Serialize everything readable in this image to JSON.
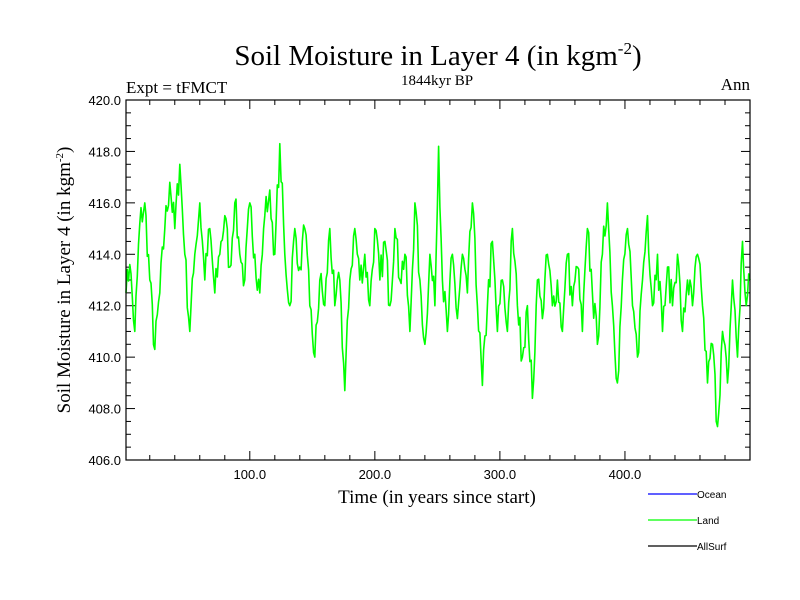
{
  "chart_data": {
    "type": "line",
    "title": "Soil Moisture in Layer 4 (in kgm",
    "title_superscript": "-2",
    "title_close": ")",
    "subtitle": "1844kyr BP",
    "left_label": "Expt = tFMCT",
    "right_label": "Ann",
    "xlabel": "Time (in years since start)",
    "ylabel": "Soil Moisture in Layer 4 (in kgm",
    "ylabel_superscript": "-2",
    "ylabel_close": ")",
    "xlim": [
      1,
      500
    ],
    "ylim": [
      406,
      420
    ],
    "x_major_ticks": [
      100,
      200,
      300,
      400
    ],
    "x_tick_labels": [
      "100.0",
      "200.0",
      "300.0",
      "400.0"
    ],
    "y_major_ticks": [
      406,
      408,
      410,
      412,
      414,
      416,
      418,
      420
    ],
    "y_tick_labels": [
      "406.0",
      "408.0",
      "410.0",
      "412.0",
      "414.0",
      "416.0",
      "418.0",
      "420.0"
    ],
    "legend": [
      {
        "name": "Ocean",
        "color": "#0000ff"
      },
      {
        "name": "Land",
        "color": "#00ff00"
      },
      {
        "name": "AllSurf",
        "color": "#000000"
      }
    ],
    "series": [
      {
        "name": "Land",
        "color": "#00ff00",
        "keypoints": [
          [
            1,
            412.5
          ],
          [
            4,
            413.6
          ],
          [
            8,
            411.0
          ],
          [
            12,
            415.2
          ],
          [
            16,
            416.0
          ],
          [
            20,
            413.0
          ],
          [
            24,
            410.3
          ],
          [
            28,
            412.5
          ],
          [
            32,
            415.0
          ],
          [
            36,
            416.8
          ],
          [
            40,
            415.0
          ],
          [
            44,
            417.5
          ],
          [
            48,
            414.0
          ],
          [
            52,
            411.0
          ],
          [
            56,
            414.0
          ],
          [
            60,
            416.0
          ],
          [
            64,
            413.0
          ],
          [
            68,
            415.0
          ],
          [
            72,
            412.5
          ],
          [
            76,
            414.0
          ],
          [
            80,
            415.5
          ],
          [
            84,
            413.5
          ],
          [
            88,
            416.0
          ],
          [
            92,
            414.0
          ],
          [
            96,
            413.0
          ],
          [
            100,
            416.0
          ],
          [
            104,
            414.0
          ],
          [
            108,
            412.5
          ],
          [
            112,
            415.5
          ],
          [
            116,
            416.5
          ],
          [
            120,
            414.0
          ],
          [
            124,
            418.3
          ],
          [
            128,
            414.0
          ],
          [
            132,
            412.0
          ],
          [
            136,
            415.0
          ],
          [
            140,
            413.5
          ],
          [
            144,
            415.0
          ],
          [
            148,
            412.0
          ],
          [
            152,
            410.0
          ],
          [
            156,
            413.0
          ],
          [
            160,
            412.0
          ],
          [
            164,
            415.0
          ],
          [
            168,
            412.0
          ],
          [
            172,
            413.0
          ],
          [
            176,
            408.7
          ],
          [
            180,
            413.0
          ],
          [
            184,
            415.0
          ],
          [
            188,
            413.0
          ],
          [
            192,
            414.0
          ],
          [
            196,
            412.0
          ],
          [
            200,
            415.0
          ],
          [
            204,
            413.0
          ],
          [
            208,
            414.5
          ],
          [
            212,
            412.0
          ],
          [
            216,
            415.0
          ],
          [
            220,
            413.0
          ],
          [
            224,
            414.0
          ],
          [
            228,
            411.0
          ],
          [
            232,
            416.0
          ],
          [
            236,
            413.0
          ],
          [
            240,
            410.5
          ],
          [
            244,
            414.0
          ],
          [
            248,
            412.0
          ],
          [
            251,
            418.2
          ],
          [
            254,
            413.0
          ],
          [
            258,
            411.0
          ],
          [
            262,
            414.0
          ],
          [
            266,
            411.5
          ],
          [
            270,
            414.0
          ],
          [
            274,
            412.5
          ],
          [
            278,
            416.0
          ],
          [
            282,
            412.0
          ],
          [
            286,
            408.9
          ],
          [
            290,
            412.0
          ],
          [
            294,
            414.5
          ],
          [
            298,
            411.0
          ],
          [
            302,
            413.0
          ],
          [
            306,
            411.0
          ],
          [
            310,
            415.0
          ],
          [
            314,
            412.0
          ],
          [
            318,
            410.0
          ],
          [
            322,
            412.0
          ],
          [
            326,
            408.4
          ],
          [
            330,
            413.0
          ],
          [
            334,
            411.5
          ],
          [
            338,
            414.0
          ],
          [
            342,
            412.0
          ],
          [
            346,
            413.0
          ],
          [
            350,
            411.0
          ],
          [
            354,
            414.0
          ],
          [
            358,
            412.0
          ],
          [
            362,
            413.5
          ],
          [
            366,
            411.0
          ],
          [
            370,
            415.0
          ],
          [
            374,
            412.5
          ],
          [
            378,
            410.5
          ],
          [
            382,
            414.0
          ],
          [
            386,
            416.0
          ],
          [
            390,
            412.0
          ],
          [
            394,
            409.0
          ],
          [
            398,
            413.0
          ],
          [
            402,
            415.0
          ],
          [
            406,
            412.0
          ],
          [
            410,
            410.0
          ],
          [
            414,
            413.0
          ],
          [
            418,
            415.5
          ],
          [
            422,
            412.0
          ],
          [
            426,
            414.0
          ],
          [
            430,
            411.0
          ],
          [
            434,
            413.5
          ],
          [
            438,
            412.0
          ],
          [
            442,
            414.0
          ],
          [
            446,
            411.0
          ],
          [
            450,
            413.0
          ],
          [
            454,
            412.0
          ],
          [
            458,
            414.0
          ],
          [
            462,
            412.0
          ],
          [
            466,
            409.0
          ],
          [
            470,
            410.5
          ],
          [
            474,
            407.3
          ],
          [
            478,
            411.0
          ],
          [
            482,
            409.0
          ],
          [
            486,
            413.0
          ],
          [
            490,
            410.0
          ],
          [
            494,
            414.5
          ],
          [
            497,
            412.0
          ],
          [
            500,
            413.0
          ]
        ]
      }
    ]
  }
}
